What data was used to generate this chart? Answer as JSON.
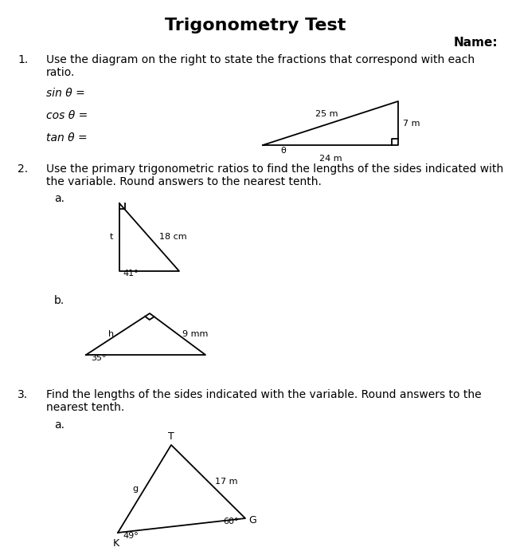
{
  "title": "Trigonometry Test",
  "name_label": "Name:",
  "bg_color": "#ffffff",
  "text_color": "#000000",
  "q1_number": "1.",
  "q1_text1": "Use the diagram on the right to state the fractions that correspond with each",
  "q1_text2": "ratio.",
  "sin_label": "sin θ =",
  "cos_label": "cos θ =",
  "tan_label": "tan θ =",
  "tri1_hyp": "25 m",
  "tri1_vert": "7 m",
  "tri1_horiz": "24 m",
  "tri1_angle": "θ",
  "q2_number": "2.",
  "q2_text1": "Use the primary trigonometric ratios to find the lengths of the sides indicated with",
  "q2_text2": "the variable. Round answers to the nearest tenth.",
  "q2a_label": "a.",
  "q2a_t": "t",
  "q2a_hyp": "18 cm",
  "q2a_angle": "41°",
  "q2b_label": "b.",
  "q2b_h": "h",
  "q2b_side": "9 mm",
  "q2b_angle": "35°",
  "q3_number": "3.",
  "q3_text1": "Find the lengths of the sides indicated with the variable. Round answers to the",
  "q3_text2": "nearest tenth.",
  "q3a_label": "a.",
  "q3a_T": "T",
  "q3a_g": "g",
  "q3a_17": "17 m",
  "q3a_49": "49°",
  "q3a_60": "60°",
  "q3a_K": "K",
  "q3a_G": "G",
  "title_fontsize": 16,
  "body_fontsize": 10,
  "small_fontsize": 8
}
